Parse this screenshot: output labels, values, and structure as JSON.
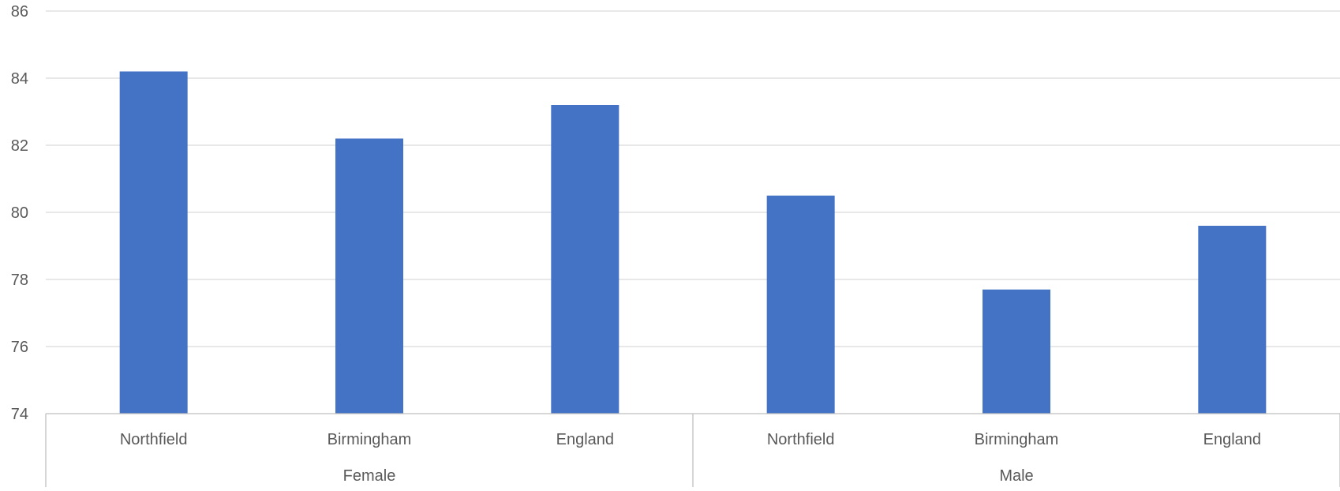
{
  "chart_data": {
    "type": "bar",
    "title": "",
    "xlabel": "",
    "ylabel": "",
    "ylim": [
      74,
      86
    ],
    "y_ticks": [
      74,
      76,
      78,
      80,
      82,
      84,
      86
    ],
    "grid": true,
    "legend": "none",
    "groups": [
      {
        "label": "Female",
        "categories": [
          "Northfield",
          "Birmingham",
          "England"
        ]
      },
      {
        "label": "Male",
        "categories": [
          "Northfield",
          "Birmingham",
          "England"
        ]
      }
    ],
    "categories": [
      "Northfield",
      "Birmingham",
      "England",
      "Northfield",
      "Birmingham",
      "England"
    ],
    "values": [
      84.2,
      82.2,
      83.2,
      80.5,
      77.7,
      79.6
    ],
    "bar_color": "#4472c4"
  }
}
